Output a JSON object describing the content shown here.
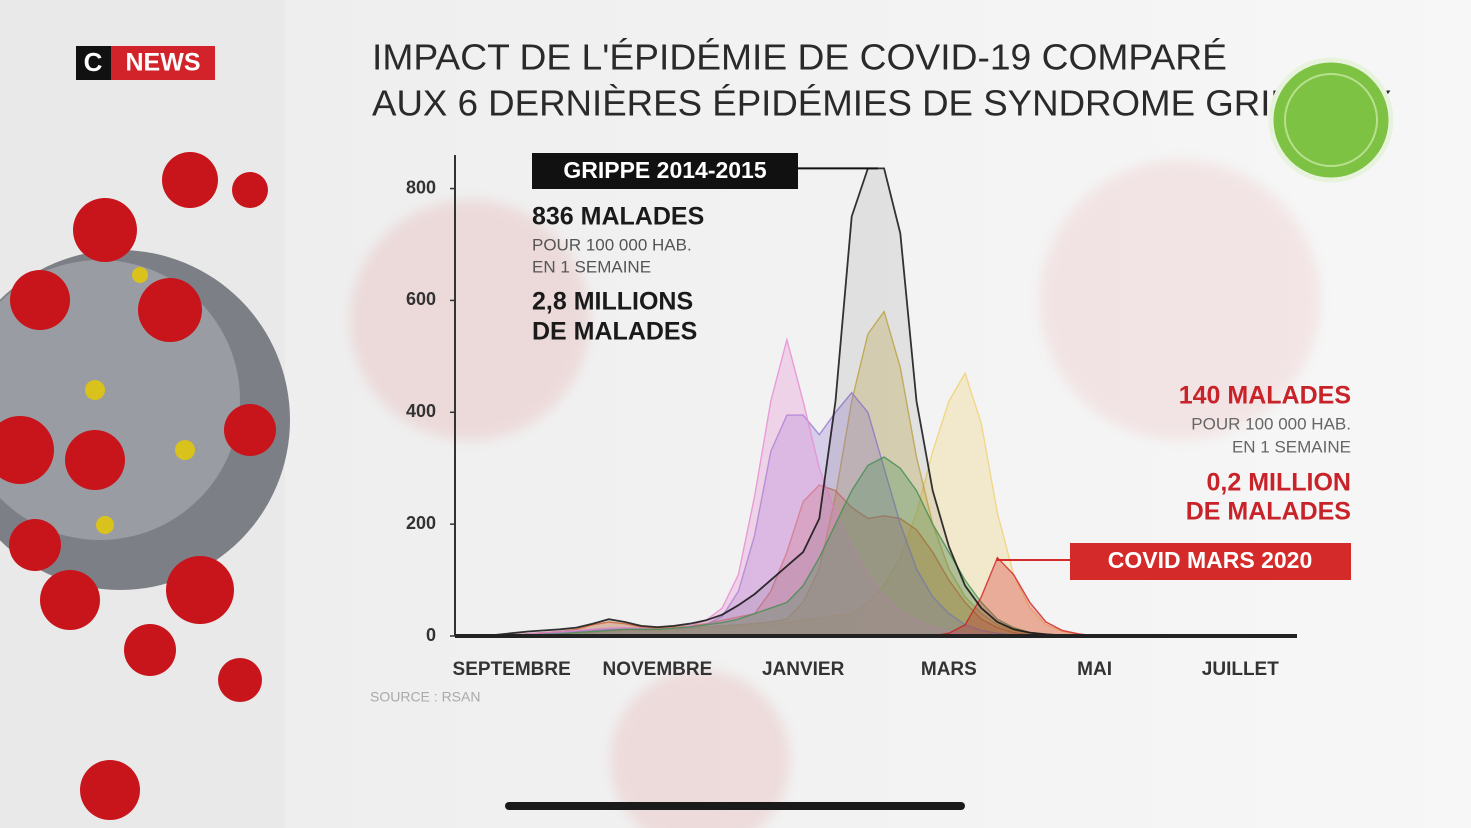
{
  "header": {
    "logo": {
      "c": "C",
      "news": "NEWS"
    }
  },
  "chart_data": {
    "type": "area",
    "title": [
      "IMPACT DE L'ÉPIDÉMIE DE COVID-19 COMPARÉ",
      "AUX 6 DERNIÈRES ÉPIDÉMIES DE SYNDROME GRIPPAUX"
    ],
    "categories": [
      null,
      null,
      null,
      "SEPTEMBRE",
      null,
      null,
      null,
      null,
      null,
      null,
      null,
      null,
      "NOVEMBRE",
      null,
      null,
      null,
      null,
      null,
      null,
      null,
      null,
      "JANVIER",
      null,
      null,
      null,
      null,
      null,
      null,
      null,
      null,
      "MARS",
      null,
      null,
      null,
      null,
      null,
      null,
      null,
      null,
      "MAI",
      null,
      null,
      null,
      null,
      null,
      null,
      null,
      null,
      "JUILLET",
      null,
      null,
      null
    ],
    "ylim": [
      0,
      860
    ],
    "yticks": [
      0,
      200,
      400,
      600,
      800
    ],
    "series": [
      {
        "color": "#f0d27a",
        "values": [
          0,
          0,
          0,
          0,
          1,
          2,
          3,
          4,
          5,
          6,
          8,
          8,
          8,
          9,
          10,
          12,
          14,
          16,
          18,
          20,
          24,
          28,
          32,
          36,
          40,
          60,
          90,
          140,
          220,
          330,
          420,
          470,
          380,
          220,
          110,
          50,
          20,
          8,
          3,
          1,
          0,
          0,
          0,
          0,
          0,
          0,
          0,
          0,
          0,
          0,
          0,
          0
        ]
      },
      {
        "color": "#c9b24e",
        "values": [
          0,
          0,
          0,
          1,
          2,
          3,
          4,
          5,
          6,
          8,
          10,
          10,
          10,
          12,
          14,
          16,
          18,
          20,
          22,
          25,
          30,
          60,
          120,
          250,
          420,
          540,
          580,
          480,
          320,
          200,
          120,
          70,
          40,
          20,
          10,
          4,
          1,
          0,
          0,
          0,
          0,
          0,
          0,
          0,
          0,
          0,
          0,
          0,
          0,
          0,
          0,
          0
        ]
      },
      {
        "color": "#e0703c",
        "values": [
          0,
          0,
          0,
          2,
          4,
          6,
          8,
          12,
          20,
          25,
          22,
          16,
          14,
          16,
          18,
          22,
          28,
          34,
          40,
          80,
          150,
          240,
          270,
          260,
          230,
          210,
          215,
          210,
          190,
          150,
          100,
          60,
          30,
          15,
          6,
          2,
          0,
          0,
          0,
          0,
          0,
          0,
          0,
          0,
          0,
          0,
          0,
          0,
          0,
          0,
          0,
          0
        ]
      },
      {
        "color": "#9a7fd6",
        "values": [
          0,
          0,
          0,
          1,
          2,
          4,
          6,
          8,
          10,
          12,
          12,
          12,
          12,
          14,
          16,
          20,
          35,
          80,
          180,
          330,
          395,
          395,
          360,
          400,
          435,
          400,
          300,
          200,
          120,
          70,
          40,
          20,
          10,
          5,
          2,
          0,
          0,
          0,
          0,
          0,
          0,
          0,
          0,
          0,
          0,
          0,
          0,
          0,
          0,
          0,
          0,
          0
        ]
      },
      {
        "color": "#e78fd2",
        "values": [
          0,
          0,
          0,
          2,
          4,
          6,
          8,
          10,
          12,
          14,
          15,
          14,
          12,
          14,
          18,
          28,
          50,
          110,
          250,
          420,
          530,
          420,
          300,
          220,
          160,
          110,
          70,
          45,
          28,
          16,
          8,
          4,
          2,
          1,
          0,
          0,
          0,
          0,
          0,
          0,
          0,
          0,
          0,
          0,
          0,
          0,
          0,
          0,
          0,
          0,
          0,
          0
        ]
      },
      {
        "color": "#4f9a5a",
        "values": [
          0,
          0,
          0,
          1,
          2,
          3,
          4,
          6,
          8,
          10,
          12,
          12,
          12,
          14,
          16,
          20,
          24,
          30,
          40,
          50,
          60,
          90,
          140,
          200,
          260,
          305,
          320,
          300,
          260,
          200,
          150,
          100,
          60,
          30,
          15,
          6,
          2,
          0,
          0,
          0,
          0,
          0,
          0,
          0,
          0,
          0,
          0,
          0,
          0,
          0,
          0,
          0
        ]
      },
      {
        "name": "COVID MARS 2020",
        "color": "#d42a2a",
        "values": [
          0,
          0,
          0,
          0,
          0,
          0,
          0,
          0,
          0,
          0,
          0,
          0,
          0,
          0,
          0,
          0,
          0,
          0,
          0,
          0,
          0,
          0,
          0,
          0,
          0,
          0,
          0,
          0,
          0,
          0,
          5,
          20,
          70,
          140,
          110,
          60,
          25,
          10,
          4,
          0,
          0,
          0,
          0,
          0,
          0,
          0,
          0,
          0,
          0,
          0,
          0,
          0
        ]
      },
      {
        "name": "GRIPPE 2014-2015",
        "color": "#111111",
        "values": [
          0,
          0,
          2,
          5,
          8,
          10,
          12,
          15,
          22,
          30,
          25,
          18,
          16,
          18,
          22,
          28,
          38,
          55,
          75,
          100,
          125,
          150,
          210,
          420,
          750,
          836,
          836,
          720,
          420,
          260,
          160,
          90,
          50,
          25,
          12,
          6,
          3,
          1,
          0,
          0,
          0,
          0,
          0,
          0,
          0,
          0,
          0,
          0,
          0,
          0,
          0,
          0
        ]
      }
    ],
    "annotations": [
      {
        "lines": [
          "836 MALADES",
          "POUR 100 000 HAB.",
          "EN 1 SEMAINE",
          "2,8 MILLIONS",
          "DE MALADES"
        ]
      },
      {
        "lines": [
          "140 MALADES",
          "POUR 100 000 HAB.",
          "EN 1 SEMAINE",
          "0,2 MILLION",
          "DE MALADES"
        ]
      }
    ],
    "source": "SOURCE : RSAN"
  }
}
